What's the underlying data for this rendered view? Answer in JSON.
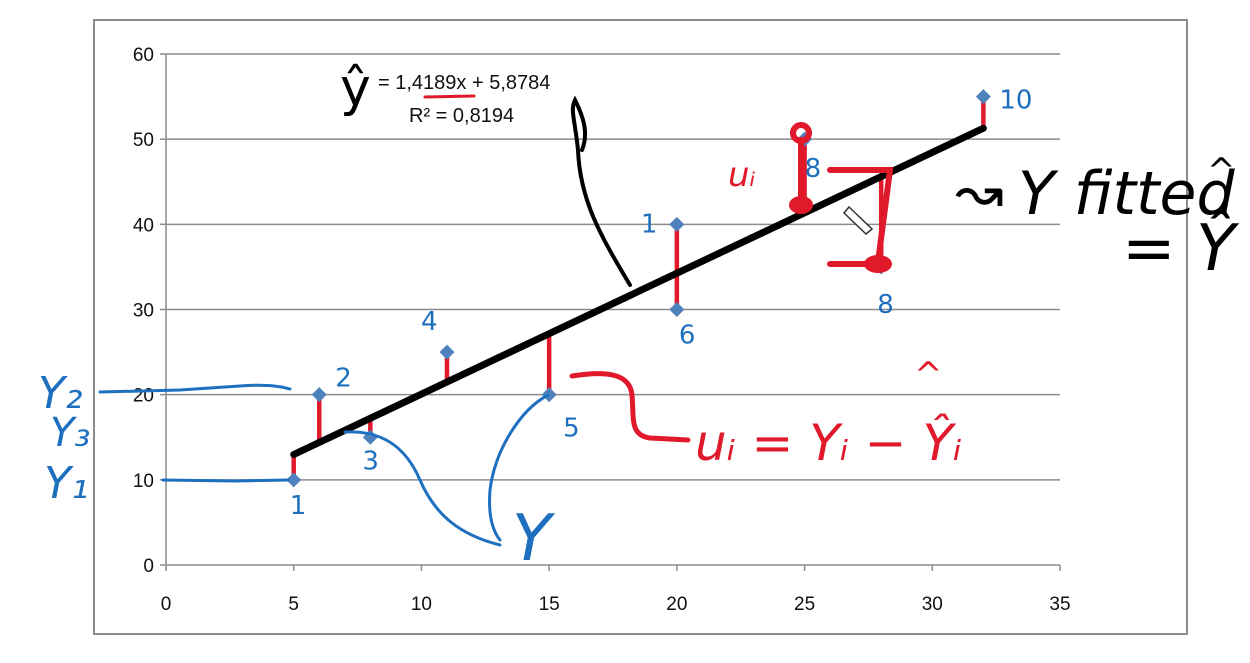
{
  "chart_data": {
    "type": "scatter",
    "title": "",
    "xlabel": "",
    "ylabel": "",
    "xlim": [
      0,
      35
    ],
    "ylim": [
      0,
      60
    ],
    "xticks": [
      0,
      5,
      10,
      15,
      20,
      25,
      30,
      35
    ],
    "yticks": [
      0,
      10,
      20,
      30,
      40,
      50,
      60
    ],
    "grid": "horizontal",
    "marker_color": "#4f81bd",
    "series": [
      {
        "x": [
          5,
          6,
          8,
          11,
          15,
          20,
          20,
          25,
          28,
          32
        ],
        "y": [
          10,
          20,
          15,
          25,
          20,
          40,
          30,
          50,
          35,
          55
        ]
      }
    ],
    "trendline": {
      "slope": 1.4189,
      "intercept": 5.8784,
      "x_range": [
        5,
        32
      ],
      "equation": "= 1,4189x + 5,8784",
      "r_squared": "R² = 0,8194"
    }
  },
  "annotations": {
    "yhat_label": "ŷ",
    "point_numbers": [
      "1",
      "2",
      "3",
      "4",
      "5",
      "1",
      "6",
      "8",
      "8",
      "10"
    ],
    "y_labels": {
      "y2": "Y₂",
      "y3": "Y₃",
      "y1": "Y₁"
    },
    "big_y": "Y",
    "residual_formula": "uᵢ = Yᵢ − Ŷᵢ",
    "ui_label": "uᵢ",
    "fitted_text": "Y fitted",
    "fitted_eq": "= Ŷ",
    "hat_mark": "^",
    "arrow_mark": "↝"
  }
}
